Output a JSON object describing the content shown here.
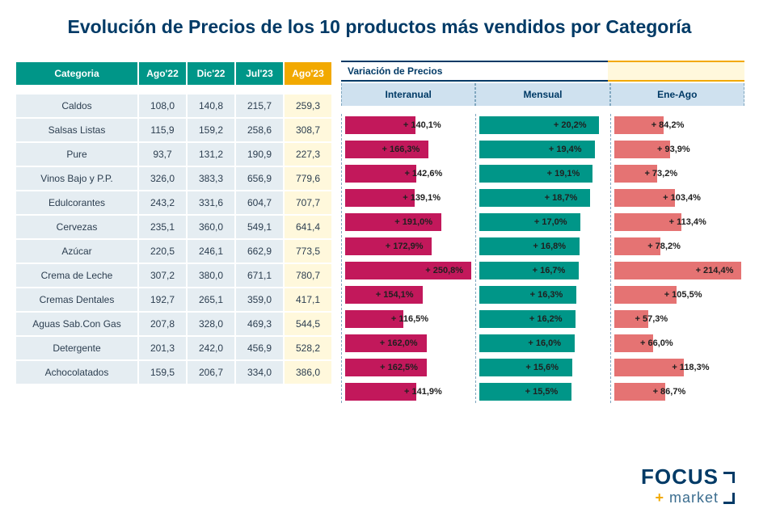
{
  "title": "Evolución de Precios de los 10 productos más vendidos por Categoría",
  "table": {
    "headers": {
      "category": "Categoria",
      "cols": [
        "Ago'22",
        "Dic'22",
        "Jul'23",
        "Ago'23"
      ]
    },
    "rows": [
      {
        "cat": "Caldos",
        "vals": [
          "108,0",
          "140,8",
          "215,7",
          "259,3"
        ]
      },
      {
        "cat": "Salsas Listas",
        "vals": [
          "115,9",
          "159,2",
          "258,6",
          "308,7"
        ]
      },
      {
        "cat": "Pure",
        "vals": [
          "93,7",
          "131,2",
          "190,9",
          "227,3"
        ]
      },
      {
        "cat": "Vinos Bajo y P.P.",
        "vals": [
          "326,0",
          "383,3",
          "656,9",
          "779,6"
        ]
      },
      {
        "cat": "Edulcorantes",
        "vals": [
          "243,2",
          "331,6",
          "604,7",
          "707,7"
        ]
      },
      {
        "cat": "Cervezas",
        "vals": [
          "235,1",
          "360,0",
          "549,1",
          "641,4"
        ]
      },
      {
        "cat": "Azúcar",
        "vals": [
          "220,5",
          "246,1",
          "662,9",
          "773,5"
        ]
      },
      {
        "cat": "Crema de Leche",
        "vals": [
          "307,2",
          "380,0",
          "671,1",
          "780,7"
        ]
      },
      {
        "cat": "Cremas Dentales",
        "vals": [
          "192,7",
          "265,1",
          "359,0",
          "417,1"
        ]
      },
      {
        "cat": "Aguas Sab.Con Gas",
        "vals": [
          "207,8",
          "328,0",
          "469,3",
          "544,5"
        ]
      },
      {
        "cat": "Detergente",
        "vals": [
          "201,3",
          "242,0",
          "456,9",
          "528,2"
        ]
      },
      {
        "cat": "Achocolatados",
        "vals": [
          "159,5",
          "206,7",
          "334,0",
          "386,0"
        ]
      }
    ]
  },
  "variation": {
    "title": "Variación de Precios",
    "subheads": [
      "Interanual",
      "Mensual",
      "Ene-Ago"
    ],
    "colors": {
      "interanual": "#c2185b",
      "mensual": "#009688",
      "eneago": "#e57373",
      "guide": "#7fa6bf"
    },
    "scales": {
      "interanual_max": 260,
      "mensual_max": 22,
      "eneago_max": 220
    },
    "rows": [
      {
        "interanual": 140.1,
        "mensual": 20.2,
        "eneago": 84.2
      },
      {
        "interanual": 166.3,
        "mensual": 19.4,
        "eneago": 93.9
      },
      {
        "interanual": 142.6,
        "mensual": 19.1,
        "eneago": 73.2
      },
      {
        "interanual": 139.1,
        "mensual": 18.7,
        "eneago": 103.4
      },
      {
        "interanual": 191.0,
        "mensual": 17.0,
        "eneago": 113.4
      },
      {
        "interanual": 172.9,
        "mensual": 16.8,
        "eneago": 78.2
      },
      {
        "interanual": 250.8,
        "mensual": 16.7,
        "eneago": 214.4
      },
      {
        "interanual": 154.1,
        "mensual": 16.3,
        "eneago": 105.5
      },
      {
        "interanual": 116.5,
        "mensual": 16.2,
        "eneago": 57.3
      },
      {
        "interanual": 162.0,
        "mensual": 16.0,
        "eneago": 66.0
      },
      {
        "interanual": 162.5,
        "mensual": 15.6,
        "eneago": 118.3
      },
      {
        "interanual": 141.9,
        "mensual": 15.5,
        "eneago": 86.7
      }
    ]
  },
  "logo": {
    "line1": "FOCUS",
    "line2": "market"
  }
}
